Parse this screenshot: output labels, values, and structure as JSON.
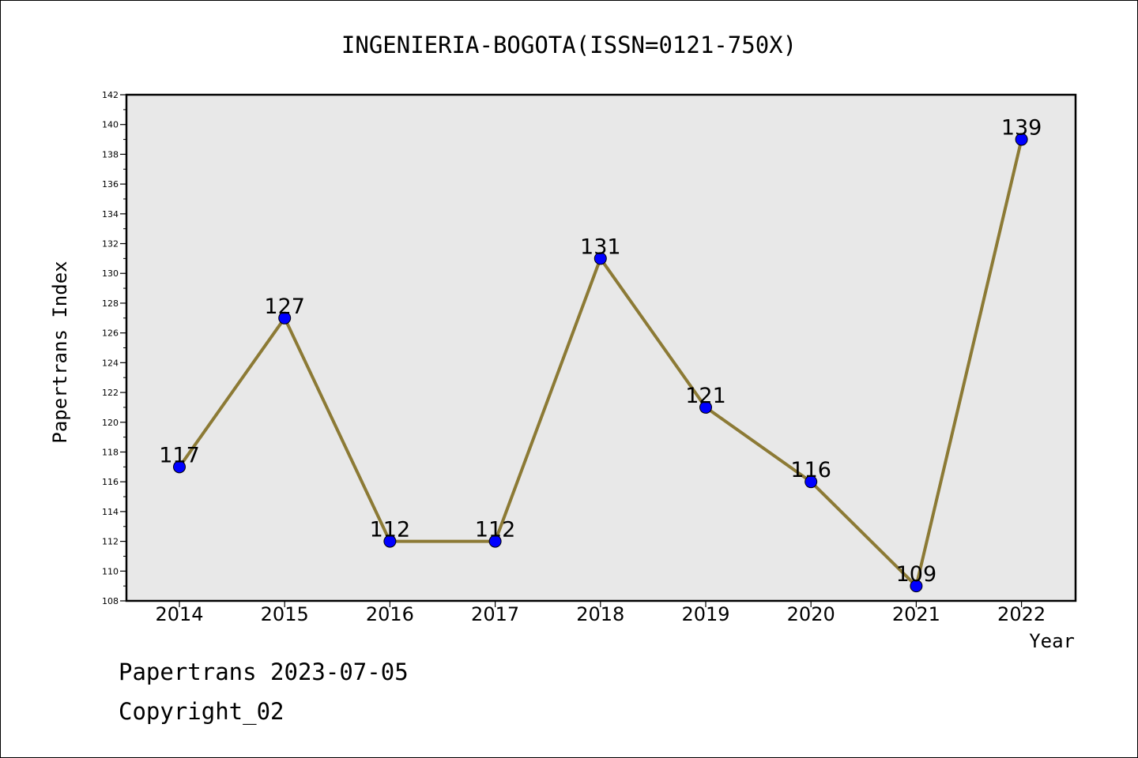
{
  "chart_data": {
    "type": "line",
    "title": "INGENIERIA-BOGOTA(ISSN=0121-750X)",
    "xlabel": "Year",
    "ylabel": "Papertrans Index",
    "categories": [
      "2014",
      "2015",
      "2016",
      "2017",
      "2018",
      "2019",
      "2020",
      "2021",
      "2022"
    ],
    "values": [
      117,
      127,
      112,
      112,
      131,
      121,
      116,
      109,
      139
    ],
    "ylim": [
      108,
      142
    ],
    "ytick_step": 2,
    "grid": false,
    "line_color": "#8c7a35",
    "marker_color": "#0000ff",
    "plot_background": "#e8e8e8"
  },
  "footer": {
    "line1": "Papertrans 2023-07-05",
    "line2": "Copyright_02"
  }
}
